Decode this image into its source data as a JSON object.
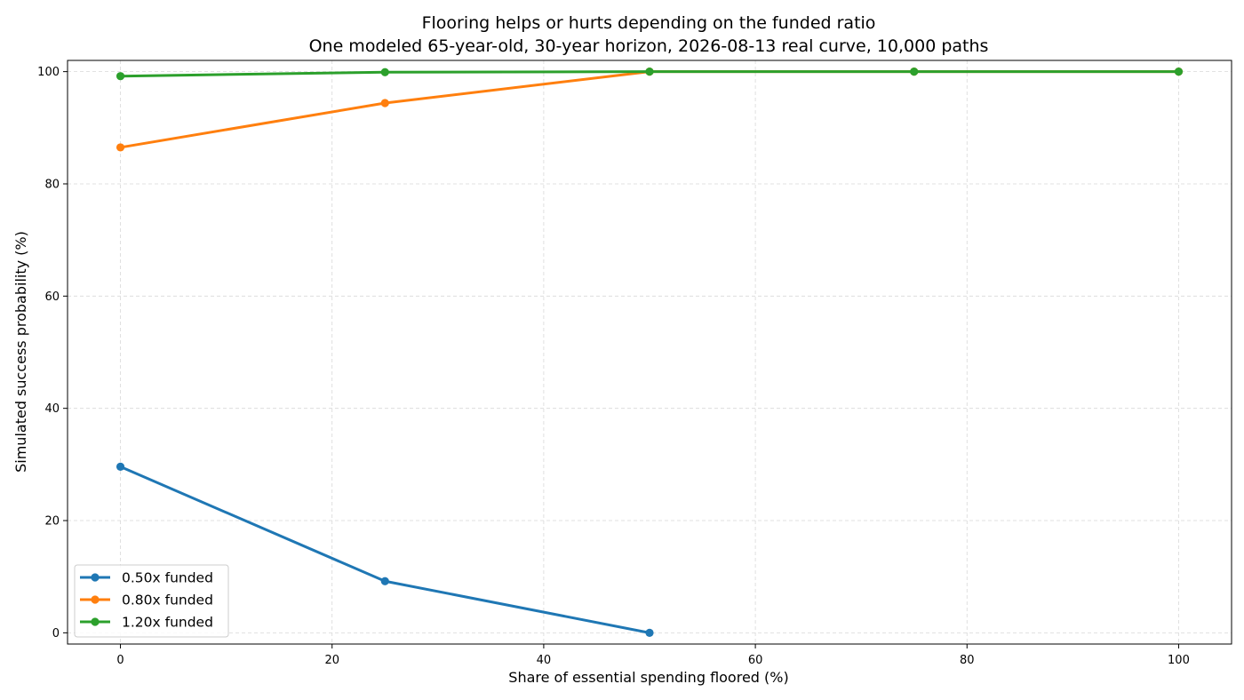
{
  "chart_data": {
    "type": "line",
    "title": "Flooring helps or hurts depending on the funded ratio",
    "subtitle": "One modeled 65-year-old, 30-year horizon, 2026-08-13 real curve, 10,000 paths",
    "xlabel": "Share of essential spending floored (%)",
    "ylabel": "Simulated success probability (%)",
    "xlim": [
      -5,
      105
    ],
    "ylim": [
      -2,
      102
    ],
    "xticks": [
      0,
      20,
      40,
      60,
      80,
      100
    ],
    "yticks": [
      0,
      20,
      40,
      60,
      80,
      100
    ],
    "grid": true,
    "legend_position": "lower-left",
    "series": [
      {
        "name": "0.50x funded",
        "color": "#1f77b4",
        "x": [
          0,
          25,
          50
        ],
        "y": [
          29.6,
          9.2,
          0.0
        ]
      },
      {
        "name": "0.80x funded",
        "color": "#ff7f0e",
        "x": [
          0,
          25,
          50,
          75,
          100
        ],
        "y": [
          86.5,
          94.4,
          100.0,
          100.0,
          100.0
        ]
      },
      {
        "name": "1.20x funded",
        "color": "#2ca02c",
        "x": [
          0,
          25,
          50,
          75,
          100
        ],
        "y": [
          99.2,
          99.9,
          100.0,
          100.0,
          100.0
        ]
      }
    ]
  }
}
